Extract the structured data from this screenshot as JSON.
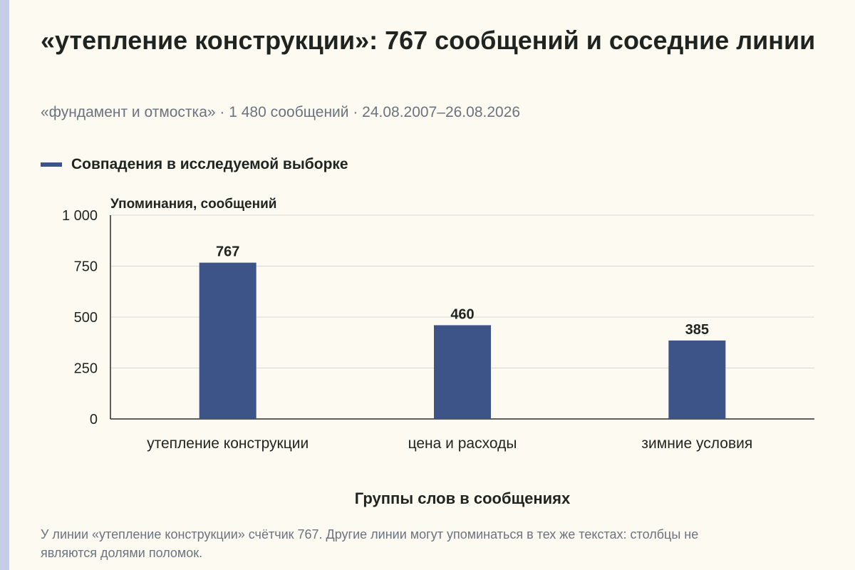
{
  "title": "«утепление конструкции»: 767 сообщений и соседние линии",
  "subtitle": "«фундамент и отмостка» · 1 480 сообщений · 24.08.2007–26.08.2026",
  "note": "У линии «утепление конструкции» счётчик 767. Другие линии могут упоминаться в тех же текстах: столбцы не являются долями поломок.",
  "colors": {
    "bar": "#3d5488",
    "grid": "#d8d8d2",
    "axis": "#2b2b2b",
    "text": "#1f2421",
    "muted": "#6b7380",
    "background": "#fdfbf1",
    "side_strip": "#c6cde6"
  },
  "chart_data": {
    "type": "bar",
    "categories": [
      "утепление конструкции",
      "цена и расходы",
      "зимние условия"
    ],
    "series": [
      {
        "name": "Совпадения в исследуемой выборке",
        "values": [
          767,
          460,
          385
        ]
      }
    ],
    "data_labels": [
      "767",
      "460",
      "385"
    ],
    "ylabel": "Упоминания, сообщений",
    "xlabel": "Группы слов в сообщениях",
    "ylim": [
      0,
      1000
    ],
    "yticks": [
      0,
      250,
      500,
      750,
      1000
    ],
    "ytick_labels": [
      "0",
      "250",
      "500",
      "750",
      "1 000"
    ],
    "grid": true,
    "legend_position": "top-left"
  }
}
